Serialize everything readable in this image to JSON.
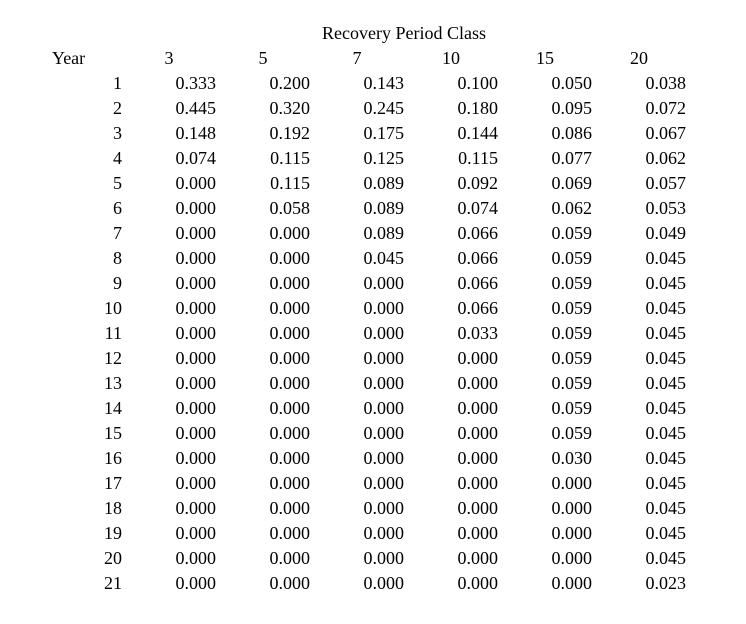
{
  "page": {
    "title": "Recovery Period Class"
  },
  "table": {
    "year_header": "Year",
    "class_headers": [
      "3",
      "5",
      "7",
      "10",
      "15",
      "20"
    ],
    "rows": [
      {
        "year": "1",
        "values": [
          "0.333",
          "0.200",
          "0.143",
          "0.100",
          "0.050",
          "0.038"
        ]
      },
      {
        "year": "2",
        "values": [
          "0.445",
          "0.320",
          "0.245",
          "0.180",
          "0.095",
          "0.072"
        ]
      },
      {
        "year": "3",
        "values": [
          "0.148",
          "0.192",
          "0.175",
          "0.144",
          "0.086",
          "0.067"
        ]
      },
      {
        "year": "4",
        "values": [
          "0.074",
          "0.115",
          "0.125",
          "0.115",
          "0.077",
          "0.062"
        ]
      },
      {
        "year": "5",
        "values": [
          "0.000",
          "0.115",
          "0.089",
          "0.092",
          "0.069",
          "0.057"
        ]
      },
      {
        "year": "6",
        "values": [
          "0.000",
          "0.058",
          "0.089",
          "0.074",
          "0.062",
          "0.053"
        ]
      },
      {
        "year": "7",
        "values": [
          "0.000",
          "0.000",
          "0.089",
          "0.066",
          "0.059",
          "0.049"
        ]
      },
      {
        "year": "8",
        "values": [
          "0.000",
          "0.000",
          "0.045",
          "0.066",
          "0.059",
          "0.045"
        ]
      },
      {
        "year": "9",
        "values": [
          "0.000",
          "0.000",
          "0.000",
          "0.066",
          "0.059",
          "0.045"
        ]
      },
      {
        "year": "10",
        "values": [
          "0.000",
          "0.000",
          "0.000",
          "0.066",
          "0.059",
          "0.045"
        ]
      },
      {
        "year": "11",
        "values": [
          "0.000",
          "0.000",
          "0.000",
          "0.033",
          "0.059",
          "0.045"
        ]
      },
      {
        "year": "12",
        "values": [
          "0.000",
          "0.000",
          "0.000",
          "0.000",
          "0.059",
          "0.045"
        ]
      },
      {
        "year": "13",
        "values": [
          "0.000",
          "0.000",
          "0.000",
          "0.000",
          "0.059",
          "0.045"
        ]
      },
      {
        "year": "14",
        "values": [
          "0.000",
          "0.000",
          "0.000",
          "0.000",
          "0.059",
          "0.045"
        ]
      },
      {
        "year": "15",
        "values": [
          "0.000",
          "0.000",
          "0.000",
          "0.000",
          "0.059",
          "0.045"
        ]
      },
      {
        "year": "16",
        "values": [
          "0.000",
          "0.000",
          "0.000",
          "0.000",
          "0.030",
          "0.045"
        ]
      },
      {
        "year": "17",
        "values": [
          "0.000",
          "0.000",
          "0.000",
          "0.000",
          "0.000",
          "0.045"
        ]
      },
      {
        "year": "18",
        "values": [
          "0.000",
          "0.000",
          "0.000",
          "0.000",
          "0.000",
          "0.045"
        ]
      },
      {
        "year": "19",
        "values": [
          "0.000",
          "0.000",
          "0.000",
          "0.000",
          "0.000",
          "0.045"
        ]
      },
      {
        "year": "20",
        "values": [
          "0.000",
          "0.000",
          "0.000",
          "0.000",
          "0.000",
          "0.045"
        ]
      },
      {
        "year": "21",
        "values": [
          "0.000",
          "0.000",
          "0.000",
          "0.000",
          "0.000",
          "0.023"
        ]
      }
    ]
  }
}
